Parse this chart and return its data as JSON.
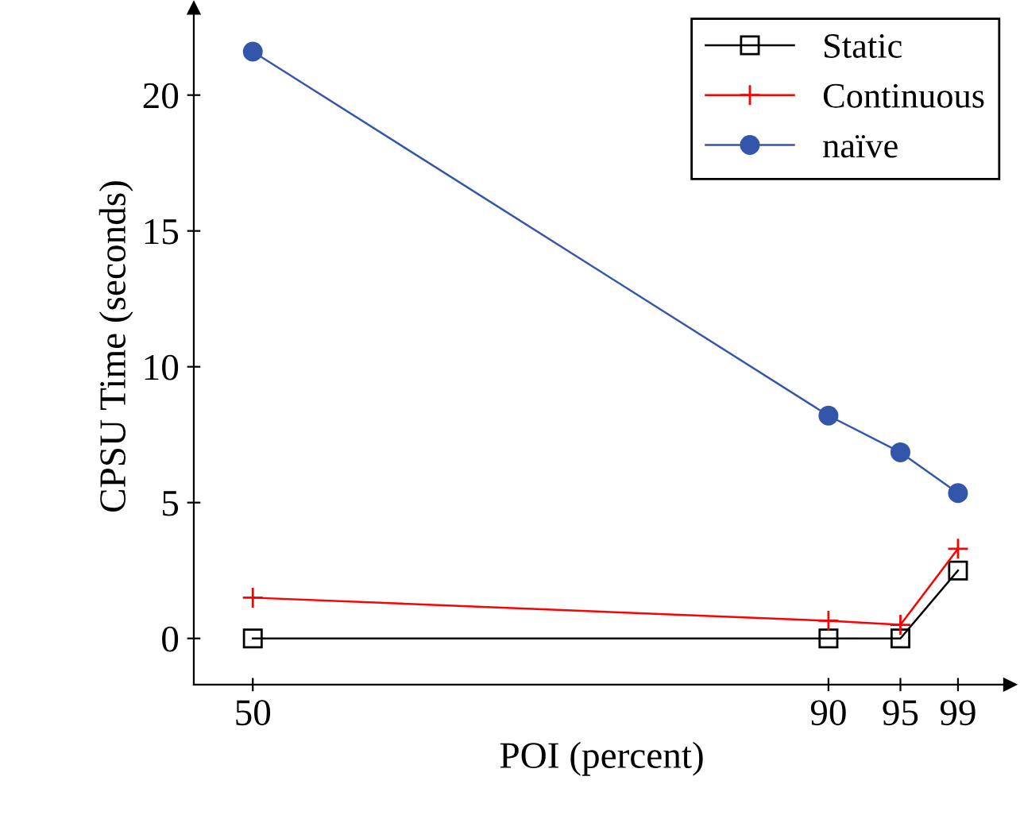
{
  "chart_data": {
    "type": "line",
    "xlabel": "POI (percent)",
    "ylabel": "CPSU Time (seconds)",
    "x": [
      50,
      90,
      95,
      99
    ],
    "series": [
      {
        "name": "Static",
        "color": "#000000",
        "marker": "square",
        "values": [
          0,
          0,
          0,
          2.5
        ]
      },
      {
        "name": "Continuous",
        "color": "#ff0000",
        "marker": "cross",
        "values": [
          1.5,
          0.65,
          0.5,
          3.3
        ]
      },
      {
        "name": "naïve",
        "color": "#3355aa",
        "marker": "circle",
        "values": [
          21.6,
          8.2,
          6.85,
          5.35
        ]
      }
    ],
    "xlim": [
      45.9,
      102.6
    ],
    "xticks": [
      50,
      90,
      95,
      99
    ],
    "ylim": [
      -1.7,
      23.2
    ],
    "yticks": [
      0,
      5,
      10,
      15,
      20
    ],
    "grid": false,
    "legend": "top right",
    "line_style": "solid"
  }
}
